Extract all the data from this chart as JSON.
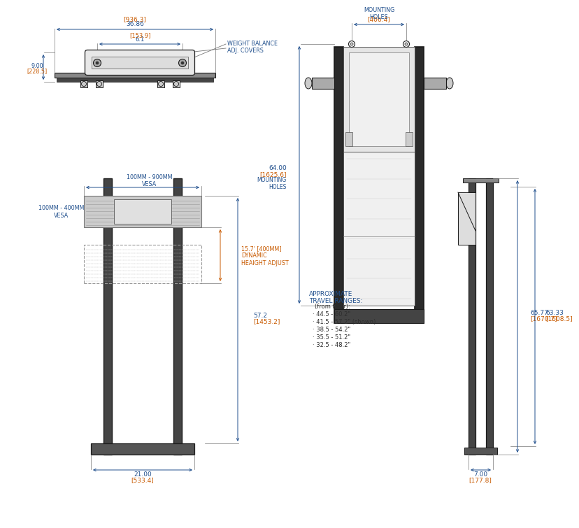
{
  "bg_color": "#ffffff",
  "lc": "#1a1a1a",
  "blue": "#1f4e8c",
  "orange": "#c85a00",
  "dk": "#2d2d2d",
  "gray": "#777777",
  "dims": {
    "top_width": "36.86",
    "top_width_mm": "[936.3]",
    "top_depth": "9.00",
    "top_depth_mm": "[228.5]",
    "top_inner": "6.1",
    "top_inner_mm": "[153.9]",
    "weight_balance": "WEIGHT BALANCE\nADJ. COVERS",
    "front_bracket": "[406.4]",
    "front_bracket_label": "MOUNTING\nHOLES",
    "front_height": "64.00",
    "front_height_mm": "[1625.6]",
    "front_height_label": "MOUNTING\nHOLES",
    "side_h1": "65.77",
    "side_h1_mm": "[1670.7]",
    "side_h2": "63.33",
    "side_h2_mm": "[1608.5]",
    "side_base": "7.00",
    "side_base_mm": "[177.8]",
    "vesa_horiz": "100MM - 900MM\nVESA",
    "vesa_vert": "100MM - 400MM\nVESA",
    "dynamic": "15.7' [400MM]\nDYNAMIC\nHEAIGHT ADJUST",
    "height57": "57.2",
    "height57_mm": "[1453.2]",
    "base21": "21.00",
    "base21_mm": "[533.4]",
    "travel_title": "APPROXIMATE\nTRAVEL RANGES:",
    "travel_body": "(from floor):\n· 44.5 - 60.2\"\n· 41.5 - 57.2\" (shown)\n· 38.5 - 54.2\"\n· 35.5 - 51.2\"\n· 32.5 - 48.2\""
  }
}
